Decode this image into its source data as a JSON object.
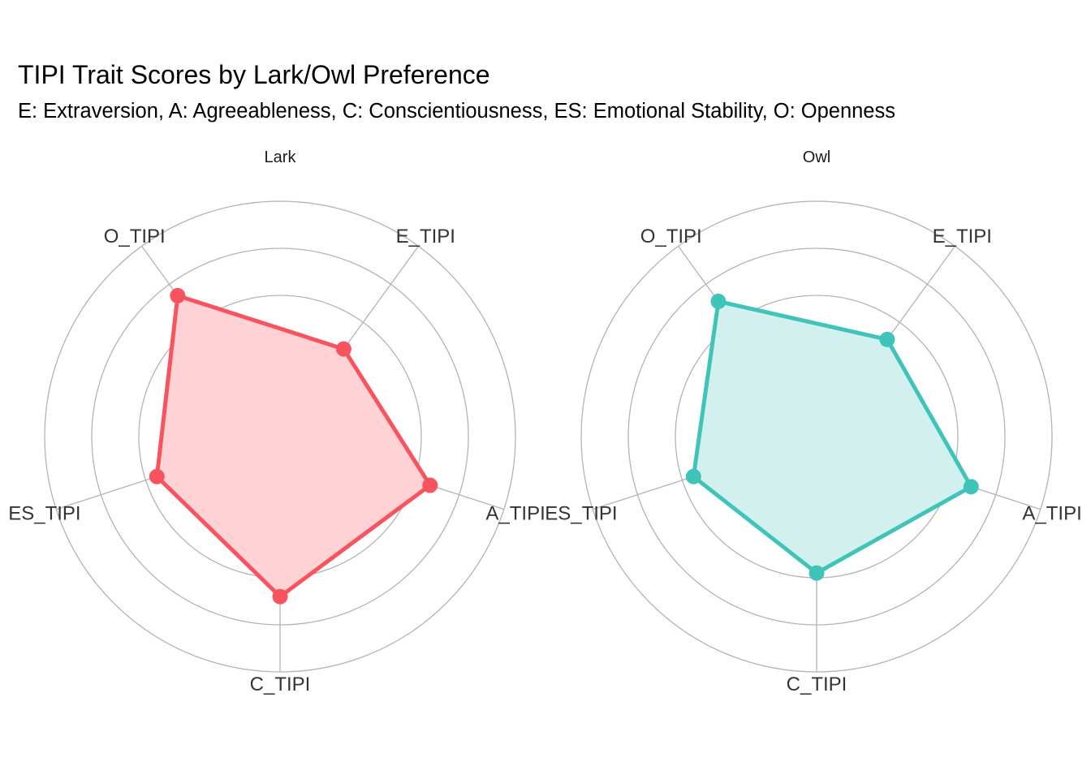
{
  "chart_data": {
    "type": "radar",
    "title": "TIPI Trait Scores by Lark/Owl Preference",
    "subtitle": "E: Extraversion, A: Agreeableness, C: Conscientiousness, ES: Emotional Stability, O: Openness",
    "axes": [
      "E_TIPI",
      "A_TIPI",
      "C_TIPI",
      "ES_TIPI",
      "O_TIPI"
    ],
    "rlim": [
      0,
      1
    ],
    "grid_rings": [
      0.2,
      0.4,
      0.6,
      0.8,
      1.0
    ],
    "grid": true,
    "legend": "none",
    "facets": [
      {
        "name": "Lark",
        "color": "#F8545F",
        "fill": "#FFD3D6",
        "values": [
          0.46,
          0.67,
          0.68,
          0.55,
          0.74
        ]
      },
      {
        "name": "Owl",
        "color": "#40C4B9",
        "fill": "#D1F0EE",
        "values": [
          0.51,
          0.69,
          0.58,
          0.55,
          0.71
        ]
      }
    ]
  }
}
